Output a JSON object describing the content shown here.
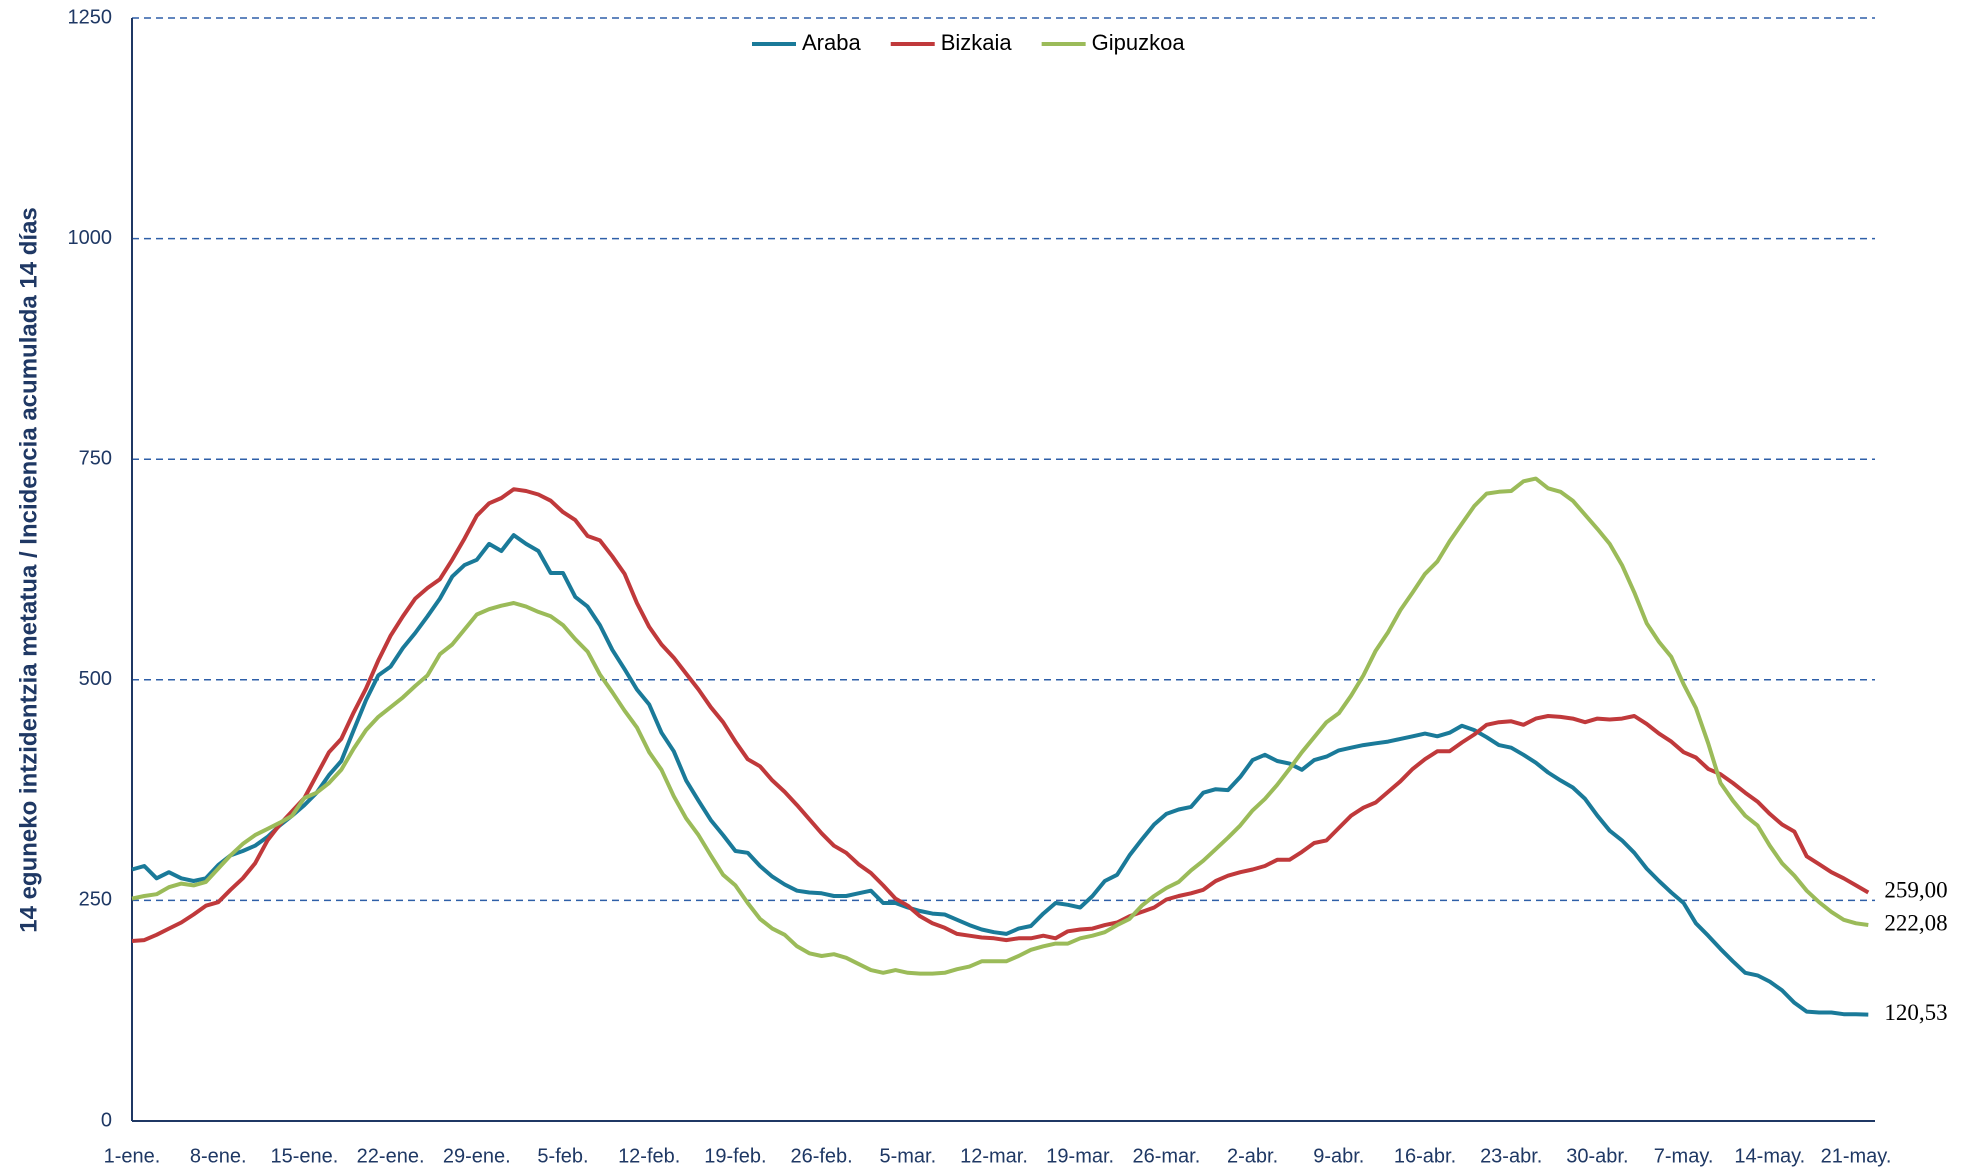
{
  "chart_data": {
    "type": "line",
    "y_label": "14 eguneko intzidentzia metatua / Incidencia acumulada 14 días",
    "categories": [
      "1-ene.",
      null,
      null,
      null,
      null,
      null,
      null,
      "8-ene.",
      null,
      null,
      null,
      null,
      null,
      null,
      "15-ene.",
      null,
      null,
      null,
      null,
      null,
      null,
      "22-ene.",
      null,
      null,
      null,
      null,
      null,
      null,
      "29-ene.",
      null,
      null,
      null,
      null,
      null,
      null,
      "5-feb.",
      null,
      null,
      null,
      null,
      null,
      null,
      "12-feb.",
      null,
      null,
      null,
      null,
      null,
      null,
      "19-feb.",
      null,
      null,
      null,
      null,
      null,
      null,
      "26-feb.",
      null,
      null,
      null,
      null,
      null,
      null,
      "5-mar.",
      null,
      null,
      null,
      null,
      null,
      null,
      "12-mar.",
      null,
      null,
      null,
      null,
      null,
      null,
      "19-mar.",
      null,
      null,
      null,
      null,
      null,
      null,
      "26-mar.",
      null,
      null,
      null,
      null,
      null,
      null,
      "2-abr.",
      null,
      null,
      null,
      null,
      null,
      null,
      "9-abr.",
      null,
      null,
      null,
      null,
      null,
      null,
      "16-abr.",
      null,
      null,
      null,
      null,
      null,
      null,
      "23-abr.",
      null,
      null,
      null,
      null,
      null,
      null,
      "30-abr.",
      null,
      null,
      null,
      null,
      null,
      null,
      "7-may.",
      null,
      null,
      null,
      null,
      null,
      null,
      "14-may.",
      null,
      null,
      null,
      null,
      null,
      null,
      "21-may.",
      null
    ],
    "series": [
      {
        "name": "Araba",
        "color": "#1a7a99",
        "values": [
          285,
          289,
          275,
          282,
          275,
          272,
          275,
          290,
          301,
          306,
          312,
          322,
          335,
          346,
          358,
          372,
          392,
          408,
          443,
          477,
          505,
          515,
          536,
          553,
          572,
          592,
          617,
          630,
          636,
          654,
          646,
          664,
          654,
          646,
          621,
          621,
          594,
          583,
          562,
          534,
          512,
          489,
          472,
          440,
          419,
          386,
          363,
          341,
          324,
          306,
          304,
          289,
          277,
          268,
          261,
          259,
          258,
          255,
          255,
          258,
          261,
          247,
          247,
          242,
          238,
          235,
          234,
          228,
          222,
          217,
          214,
          212,
          218,
          221,
          235,
          247,
          245,
          242,
          255,
          272,
          279,
          301,
          319,
          336,
          348,
          353,
          356,
          372,
          376,
          375,
          390,
          409,
          415,
          408,
          405,
          398,
          409,
          413,
          420,
          423,
          426,
          428,
          430,
          433,
          436,
          439,
          436,
          440,
          448,
          443,
          435,
          426,
          423,
          415,
          406,
          395,
          386,
          378,
          365,
          346,
          329,
          318,
          304,
          286,
          272,
          259,
          247,
          224,
          210,
          195,
          181,
          168,
          165,
          158,
          148,
          134,
          124,
          123,
          123,
          121,
          121,
          120.53
        ],
        "value_labels": {
          "141": "120,53"
        }
      },
      {
        "name": "Bizkaia",
        "color": "#c0393b",
        "values": [
          204,
          205,
          211,
          218,
          225,
          234,
          244,
          248,
          262,
          275,
          292,
          318,
          336,
          351,
          366,
          392,
          418,
          433,
          463,
          490,
          522,
          550,
          572,
          592,
          604,
          614,
          636,
          660,
          686,
          700,
          706,
          716,
          714,
          710,
          703,
          690,
          681,
          663,
          658,
          640,
          620,
          587,
          560,
          540,
          525,
          507,
          489,
          469,
          452,
          430,
          410,
          402,
          386,
          373,
          358,
          342,
          326,
          312,
          304,
          291,
          281,
          267,
          252,
          244,
          232,
          224,
          219,
          212,
          210,
          208,
          207,
          205,
          207,
          207,
          210,
          207,
          215,
          217,
          218,
          222,
          225,
          232,
          237,
          242,
          251,
          255,
          258,
          262,
          272,
          278,
          282,
          285,
          289,
          296,
          296,
          305,
          315,
          318,
          332,
          346,
          355,
          361,
          373,
          385,
          399,
          410,
          419,
          419,
          429,
          438,
          449,
          452,
          453,
          449,
          456,
          459,
          458,
          456,
          452,
          456,
          455,
          456,
          459,
          450,
          439,
          430,
          418,
          412,
          399,
          393,
          383,
          372,
          362,
          348,
          336,
          328,
          300,
          291,
          282,
          275,
          267,
          259.0
        ],
        "value_labels": {
          "141": "259,00"
        }
      },
      {
        "name": "Gipuzkoa",
        "color": "#9bbb59",
        "values": [
          252,
          255,
          257,
          265,
          269,
          267,
          271,
          286,
          301,
          314,
          324,
          331,
          338,
          346,
          366,
          372,
          383,
          398,
          422,
          443,
          458,
          469,
          480,
          493,
          505,
          529,
          540,
          557,
          574,
          580,
          584,
          587,
          583,
          577,
          572,
          562,
          546,
          532,
          506,
          486,
          465,
          446,
          418,
          398,
          368,
          343,
          324,
          301,
          279,
          267,
          247,
          229,
          218,
          211,
          198,
          190,
          187,
          189,
          185,
          178,
          171,
          168,
          171,
          168,
          167,
          167,
          168,
          172,
          175,
          181,
          181,
          181,
          187,
          194,
          198,
          201,
          201,
          207,
          210,
          214,
          222,
          229,
          244,
          255,
          264,
          271,
          284,
          295,
          308,
          321,
          335,
          352,
          365,
          381,
          399,
          418,
          435,
          452,
          462,
          482,
          505,
          533,
          554,
          579,
          599,
          620,
          634,
          657,
          677,
          697,
          711,
          713,
          714,
          725,
          728,
          717,
          713,
          703,
          687,
          671,
          654,
          630,
          599,
          564,
          543,
          526,
          495,
          468,
          428,
          383,
          363,
          346,
          335,
          312,
          292,
          278,
          261,
          248,
          237,
          228,
          224,
          222.08
        ],
        "value_labels": {
          "141": "222,08"
        }
      }
    ],
    "ylim": [
      0,
      1250
    ],
    "yticks": [
      0,
      250,
      500,
      750,
      1000,
      1250
    ],
    "grid": true,
    "legend": "top"
  }
}
